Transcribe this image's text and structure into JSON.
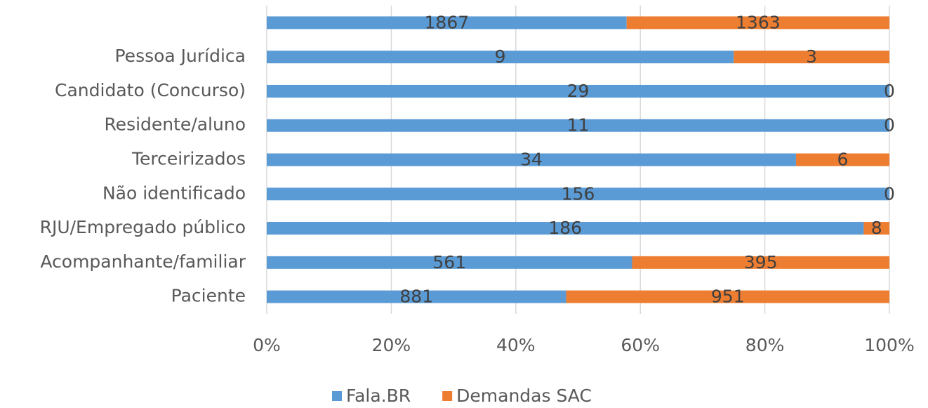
{
  "chart_data": {
    "type": "bar",
    "orientation": "horizontal",
    "stacking": "percent",
    "categories": [
      null,
      "Pessoa Jurídica",
      "Candidato (Concurso)",
      "Residente/aluno",
      "Terceirizados",
      "Não identificado",
      "RJU/Empregado público",
      "Acompanhante/familiar",
      "Paciente"
    ],
    "series": [
      {
        "name": "Fala.BR",
        "color": "#5b9bd5",
        "values": [
          1867,
          9,
          29,
          11,
          34,
          156,
          186,
          561,
          881
        ]
      },
      {
        "name": "Demandas SAC",
        "color": "#ed7d31",
        "values": [
          1363,
          3,
          0,
          0,
          6,
          0,
          8,
          395,
          951
        ]
      }
    ],
    "xlim": [
      0,
      100
    ],
    "xticks": [
      {
        "value": 0,
        "label": "0%"
      },
      {
        "value": 20,
        "label": "20%"
      },
      {
        "value": 40,
        "label": "40%"
      },
      {
        "value": 60,
        "label": "60%"
      },
      {
        "value": 80,
        "label": "80%"
      },
      {
        "value": 100,
        "label": "100%"
      }
    ],
    "grid": true,
    "legend": "bottom"
  }
}
